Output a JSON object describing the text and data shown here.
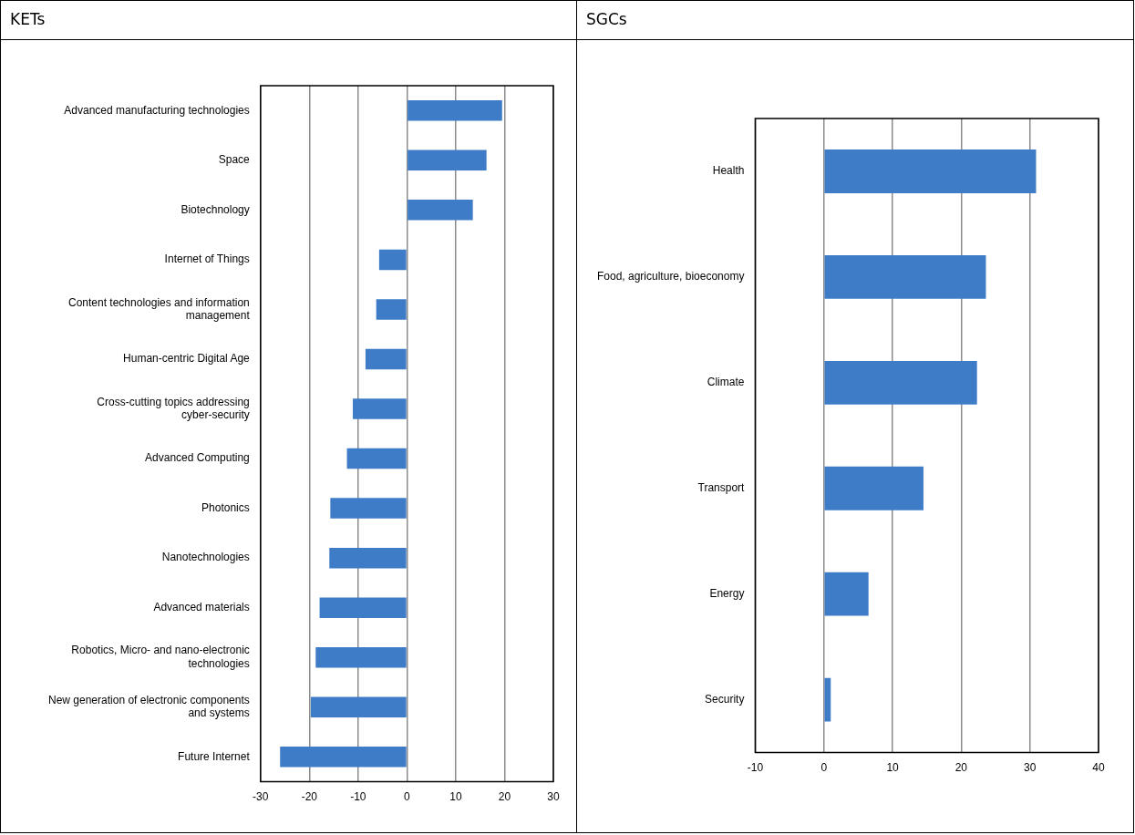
{
  "chart_data": [
    {
      "type": "bar",
      "title": "KETs",
      "orientation": "horizontal",
      "categories": [
        "Advanced manufacturing technologies",
        "Space",
        "Biotechnology",
        "Internet of Things",
        "Content technologies and information management",
        "Human-centric Digital Age",
        "Cross-cutting topics addressing cyber-security",
        "Advanced Computing",
        "Photonics",
        "Nanotechnologies",
        "Advanced materials",
        "Robotics, Micro- and nano-electronic technologies",
        "New generation of electronic components and systems",
        "Future Internet"
      ],
      "values": [
        19.5,
        16.3,
        13.5,
        -5.7,
        -6.3,
        -8.5,
        -11.1,
        -12.3,
        -15.7,
        -15.9,
        -17.9,
        -18.7,
        -19.7,
        -26
      ],
      "color": "#3f7cc8",
      "xlim": [
        -30,
        30
      ],
      "xticks": [
        -30,
        -20,
        -10,
        0,
        10,
        20,
        30
      ],
      "grid": "x"
    },
    {
      "type": "bar",
      "title": "SGCs",
      "orientation": "horizontal",
      "categories": [
        "Health",
        "Food, agriculture, bioeconomy",
        "Climate",
        "Transport",
        "Energy",
        "Security"
      ],
      "values": [
        30.9,
        23.6,
        22.3,
        14.5,
        6.5,
        1.0
      ],
      "color": "#3f7cc8",
      "xlim": [
        -10,
        40
      ],
      "xticks": [
        -10,
        0,
        10,
        20,
        30,
        40
      ],
      "grid": "x"
    }
  ]
}
